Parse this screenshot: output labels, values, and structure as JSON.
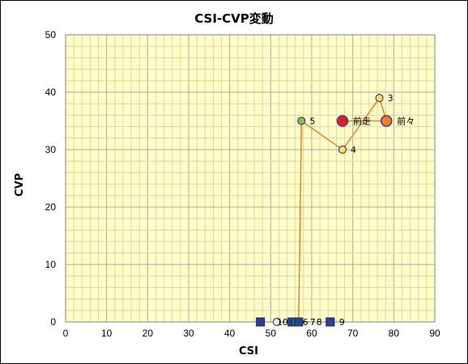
{
  "chart_data": {
    "type": "scatter",
    "title": "CSI-CVP変動",
    "xlabel": "CSI",
    "ylabel": "CVP",
    "xlim": [
      0,
      90
    ],
    "ylim": [
      0,
      50
    ],
    "x_ticks": [
      0,
      10,
      20,
      30,
      40,
      50,
      60,
      70,
      80,
      90
    ],
    "y_ticks": [
      0,
      10,
      20,
      30,
      40,
      50
    ],
    "grid": true,
    "background_color": "#ffffc6",
    "line_color": "#f47e20",
    "trajectory": [
      {
        "label": "10",
        "x": 51.5,
        "y": 0,
        "marker": "circle-small",
        "fill": "#ffffff",
        "stroke": "#3a3a8c"
      },
      {
        "label": "6",
        "x": 55.2,
        "y": 0,
        "marker": "square",
        "fill": "#2b3f9e",
        "stroke": "#10206a"
      },
      {
        "label": "7",
        "x": 56.2,
        "y": 0,
        "marker": "square",
        "fill": "#1f8a2a",
        "stroke": "#10206a"
      },
      {
        "label": "8",
        "x": 56.8,
        "y": 0,
        "marker": "square",
        "fill": "#2b3f9e",
        "stroke": "#10206a"
      },
      {
        "label": "5",
        "x": 57.5,
        "y": 35,
        "marker": "circle-small",
        "fill": "#8fc040",
        "stroke": "#3a3a8c"
      },
      {
        "label": "4",
        "x": 67.5,
        "y": 30,
        "marker": "circle-small",
        "fill": "#ffe24d",
        "stroke": "#3a3a8c"
      },
      {
        "label": "3",
        "x": 76.5,
        "y": 39,
        "marker": "circle-small",
        "fill": "#ffe24d",
        "stroke": "#3a3a8c"
      },
      {
        "label": "前々",
        "x": 78.2,
        "y": 35,
        "marker": "circle-large",
        "fill": "#f47e20",
        "stroke": "#3a3a8c"
      },
      {
        "label": "前走",
        "x": 67.5,
        "y": 35,
        "marker": "circle-large",
        "fill": "#ee1c1c",
        "stroke": "#3a3a8c"
      }
    ],
    "extra_points": [
      {
        "label": "",
        "x": 47.5,
        "y": 0,
        "marker": "square",
        "fill": "#2b3f9e",
        "stroke": "#10206a"
      },
      {
        "label": "9",
        "x": 64.5,
        "y": 0,
        "marker": "square",
        "fill": "#2b3f9e",
        "stroke": "#10206a"
      }
    ]
  }
}
